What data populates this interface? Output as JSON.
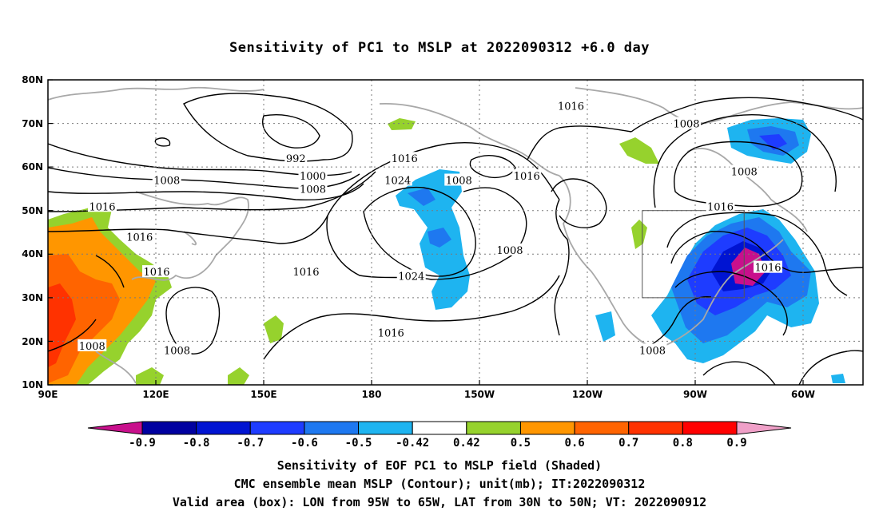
{
  "title": "Sensitivity of PC1 to MSLP at 2022090312 +6.0 day",
  "lat_ticks": [
    "80N",
    "70N",
    "60N",
    "50N",
    "40N",
    "30N",
    "20N",
    "10N"
  ],
  "lon_ticks": [
    "90E",
    "120E",
    "150E",
    "180",
    "150W",
    "120W",
    "90W",
    "60W"
  ],
  "contour_labels": [
    {
      "text": "992",
      "lon": 163,
      "lat": 62
    },
    {
      "text": "1000",
      "lon": 168,
      "lat": 58
    },
    {
      "text": "1008",
      "lon": 168,
      "lat": 55
    },
    {
      "text": "1008",
      "lon": 125,
      "lat": 57
    },
    {
      "text": "1016",
      "lon": 106,
      "lat": 51
    },
    {
      "text": "1016",
      "lon": 117,
      "lat": 44
    },
    {
      "text": "1016",
      "lon": 122,
      "lat": 36
    },
    {
      "text": "1008",
      "lon": 103,
      "lat": 19
    },
    {
      "text": "1008",
      "lon": 128,
      "lat": 18
    },
    {
      "text": "1016",
      "lon": 166,
      "lat": 36
    },
    {
      "text": "1016",
      "lon": 195,
      "lat": 62
    },
    {
      "text": "1024",
      "lon": 193,
      "lat": 57
    },
    {
      "text": "1008",
      "lon": 211,
      "lat": 57
    },
    {
      "text": "1024",
      "lon": 197,
      "lat": 35
    },
    {
      "text": "1016",
      "lon": 191,
      "lat": 22
    },
    {
      "text": "1016",
      "lon": 231,
      "lat": 58
    },
    {
      "text": "1008",
      "lon": 226,
      "lat": 41
    },
    {
      "text": "1016",
      "lon": 244,
      "lat": 74
    },
    {
      "text": "1008",
      "lon": 278,
      "lat": 70
    },
    {
      "text": "1008",
      "lon": 295,
      "lat": 59
    },
    {
      "text": "1016",
      "lon": 288,
      "lat": 51
    },
    {
      "text": "1016",
      "lon": 302,
      "lat": 37
    },
    {
      "text": "1008",
      "lon": 268,
      "lat": 18
    }
  ],
  "valid_box": {
    "lon_min": 265,
    "lon_max": 295,
    "lat_min": 30,
    "lat_max": 50
  },
  "colorbar": {
    "labels": [
      "-0.9",
      "-0.8",
      "-0.7",
      "-0.6",
      "-0.5",
      "-0.42",
      "0.42",
      "0.5",
      "0.6",
      "0.7",
      "0.8",
      "0.9"
    ],
    "colors": [
      "#c8108c",
      "#0000a0",
      "#0014d2",
      "#1e3cff",
      "#1e78f0",
      "#1eb4f0",
      "#ffffff",
      "#96d22d",
      "#ff9600",
      "#ff6400",
      "#ff3200",
      "#ff0000",
      "#f0a0c8"
    ]
  },
  "caption": {
    "line1": "Sensitivity of EOF PC1 to MSLP field (Shaded)",
    "line2": "CMC ensemble mean MSLP (Contour); unit(mb); IT:2022090312",
    "line3": "Valid area (box): LON from 95W to 65W, LAT from 30N to 50N; VT: 2022090912"
  }
}
